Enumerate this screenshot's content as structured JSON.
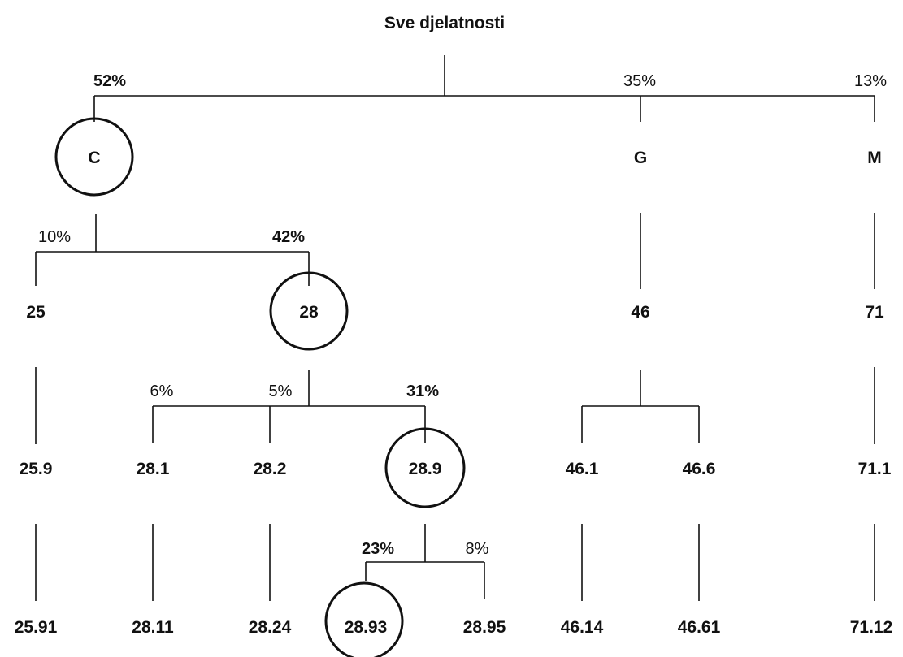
{
  "title": "Sve djelatnosti",
  "nodes": {
    "C": "C",
    "G": "G",
    "M": "M",
    "n25": "25",
    "n28": "28",
    "n46": "46",
    "n71": "71",
    "n25_9": "25.9",
    "n28_1": "28.1",
    "n28_2": "28.2",
    "n28_9": "28.9",
    "n46_1": "46.1",
    "n46_6": "46.6",
    "n71_1": "71.1",
    "n25_91": "25.91",
    "n28_11": "28.11",
    "n28_24": "28.24",
    "n28_93": "28.93",
    "n28_95": "28.95",
    "n46_14": "46.14",
    "n46_61": "46.61",
    "n71_12": "71.12"
  },
  "shares": {
    "C": "52%",
    "G": "35%",
    "M": "13%",
    "n25": "10%",
    "n28": "42%",
    "n28_1": "6%",
    "n28_2": "5%",
    "n28_9": "31%",
    "n28_93": "23%",
    "n28_95": "8%"
  },
  "highlighted_path": [
    "C",
    "28",
    "28.9",
    "28.93"
  ]
}
